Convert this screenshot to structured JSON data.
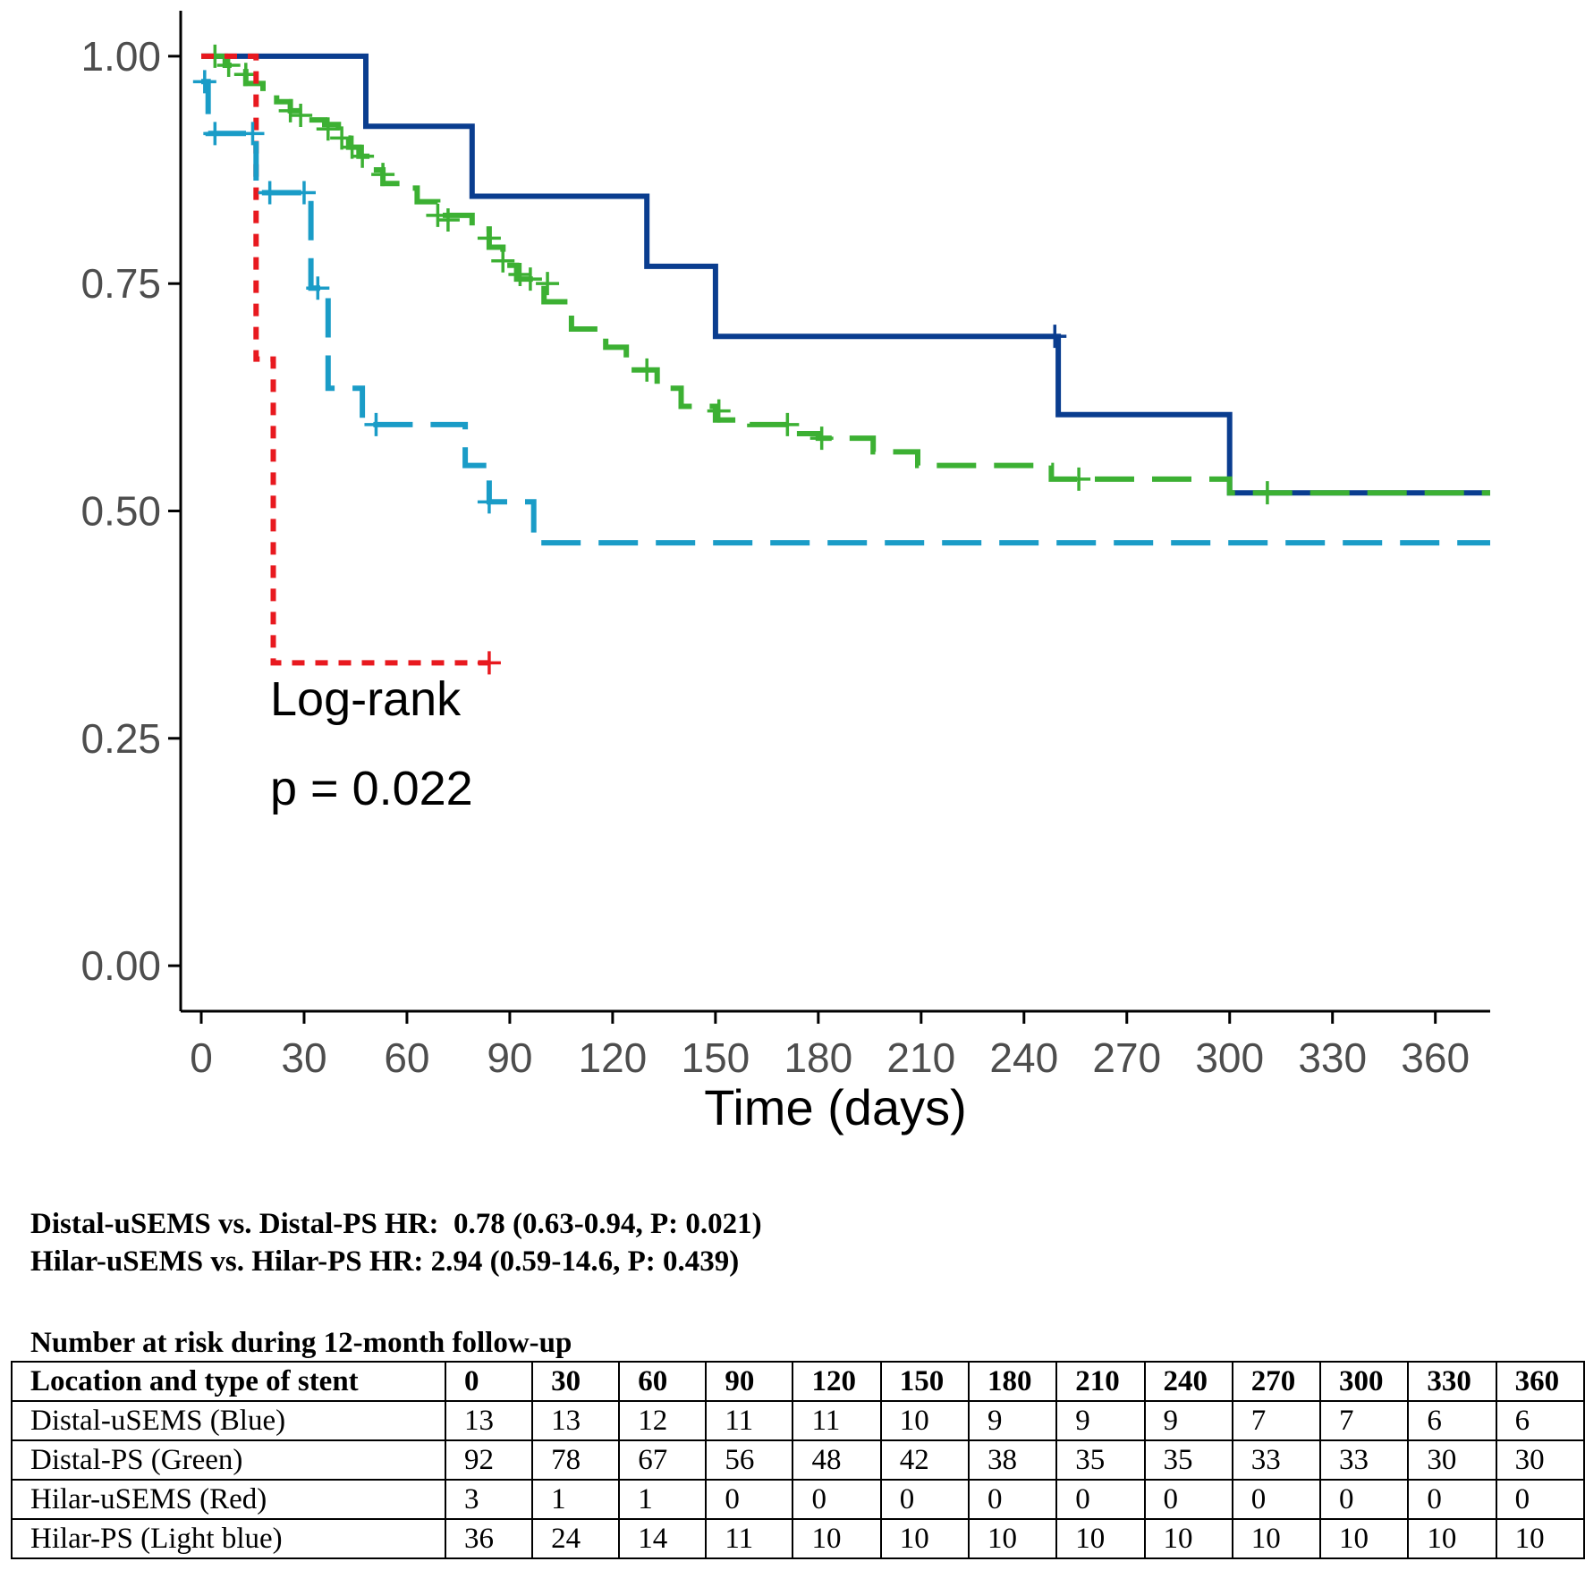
{
  "chart_data": {
    "type": "line",
    "subtype": "kaplan-meier-step",
    "xlabel": "Time (days)",
    "ylabel": "",
    "xlim": [
      -6,
      376
    ],
    "ylim": [
      -0.05,
      1.05
    ],
    "x_ticks": [
      0,
      30,
      60,
      90,
      120,
      150,
      180,
      210,
      240,
      270,
      300,
      330,
      360
    ],
    "y_ticks": [
      "0.00",
      "0.25",
      "0.50",
      "0.75",
      "1.00"
    ],
    "grid": false,
    "legend": "none",
    "annotations": [
      "Log-rank",
      "p = 0.022"
    ],
    "series": [
      {
        "key": "distal_usems",
        "color": "#0a3d8f",
        "dash": "solid",
        "steps": [
          [
            0,
            1.0
          ],
          [
            48,
            0.923
          ],
          [
            79,
            0.846
          ],
          [
            130,
            0.769
          ],
          [
            150,
            0.692
          ],
          [
            250,
            0.606
          ],
          [
            300,
            0.52
          ],
          [
            376,
            0.52
          ]
        ],
        "censors": [
          [
            249,
            0.692
          ]
        ]
      },
      {
        "key": "distal_ps",
        "color": "#3cb033",
        "dash": "dashed",
        "steps": [
          [
            0,
            1.0
          ],
          [
            7,
            0.99
          ],
          [
            13,
            0.97
          ],
          [
            18,
            0.96
          ],
          [
            22,
            0.95
          ],
          [
            26,
            0.94
          ],
          [
            30,
            0.93
          ],
          [
            36,
            0.925
          ],
          [
            40,
            0.91
          ],
          [
            43,
            0.9
          ],
          [
            46,
            0.89
          ],
          [
            50,
            0.875
          ],
          [
            53,
            0.86
          ],
          [
            60,
            0.855
          ],
          [
            63,
            0.84
          ],
          [
            69,
            0.825
          ],
          [
            79,
            0.81
          ],
          [
            84,
            0.79
          ],
          [
            88,
            0.77
          ],
          [
            92,
            0.755
          ],
          [
            100,
            0.73
          ],
          [
            108,
            0.7
          ],
          [
            118,
            0.68
          ],
          [
            124,
            0.655
          ],
          [
            133,
            0.635
          ],
          [
            140,
            0.615
          ],
          [
            150,
            0.6
          ],
          [
            160,
            0.595
          ],
          [
            172,
            0.585
          ],
          [
            180,
            0.58
          ],
          [
            196,
            0.565
          ],
          [
            209,
            0.55
          ],
          [
            248,
            0.535
          ],
          [
            300,
            0.52
          ],
          [
            376,
            0.52
          ]
        ],
        "censors": [
          [
            4,
            1.0
          ],
          [
            8,
            0.99
          ],
          [
            13,
            0.98
          ],
          [
            26,
            0.94
          ],
          [
            29,
            0.935
          ],
          [
            37,
            0.92
          ],
          [
            41,
            0.91
          ],
          [
            44,
            0.9
          ],
          [
            47,
            0.89
          ],
          [
            53,
            0.87
          ],
          [
            69,
            0.825
          ],
          [
            72,
            0.82
          ],
          [
            84,
            0.8
          ],
          [
            88,
            0.775
          ],
          [
            93,
            0.76
          ],
          [
            96,
            0.755
          ],
          [
            101,
            0.75
          ],
          [
            130,
            0.655
          ],
          [
            151,
            0.61
          ],
          [
            171,
            0.595
          ],
          [
            181,
            0.58
          ],
          [
            256,
            0.535
          ],
          [
            311,
            0.52
          ]
        ]
      },
      {
        "key": "hilar_usems",
        "color": "#e8191f",
        "dash": "dotted",
        "steps": [
          [
            0,
            1.0
          ],
          [
            16,
            0.667
          ],
          [
            21,
            0.333
          ],
          [
            84,
            0.333
          ]
        ],
        "censors": [
          [
            84,
            0.333
          ]
        ]
      },
      {
        "key": "hilar_ps",
        "color": "#1a9cc7",
        "dash": "dashed",
        "steps": [
          [
            0,
            0.972
          ],
          [
            2,
            0.915
          ],
          [
            16,
            0.85
          ],
          [
            32,
            0.745
          ],
          [
            37,
            0.635
          ],
          [
            47,
            0.595
          ],
          [
            77,
            0.55
          ],
          [
            84,
            0.51
          ],
          [
            97,
            0.465
          ],
          [
            376,
            0.465
          ]
        ],
        "censors": [
          [
            1,
            0.972
          ],
          [
            4,
            0.915
          ],
          [
            15,
            0.915
          ],
          [
            20,
            0.85
          ],
          [
            30,
            0.85
          ],
          [
            34,
            0.745
          ],
          [
            51,
            0.595
          ],
          [
            84,
            0.51
          ]
        ]
      }
    ]
  },
  "hr_lines": [
    "Distal-uSEMS vs. Distal-PS HR:  0.78 (0.63-0.94, P: 0.021)",
    "Hilar-uSEMS vs. Hilar-PS HR: 2.94 (0.59-14.6, P: 0.439)"
  ],
  "risk_table": {
    "title": "Number at risk during 12-month follow-up",
    "header": [
      "Location and type of stent",
      "0",
      "30",
      "60",
      "90",
      "120",
      "150",
      "180",
      "210",
      "240",
      "270",
      "300",
      "330",
      "360"
    ],
    "rows": [
      [
        "Distal-uSEMS (Blue)",
        "13",
        "13",
        "12",
        "11",
        "11",
        "10",
        "9",
        "9",
        "9",
        "7",
        "7",
        "6",
        "6"
      ],
      [
        "Distal-PS (Green)",
        "92",
        "78",
        "67",
        "56",
        "48",
        "42",
        "38",
        "35",
        "35",
        "33",
        "33",
        "30",
        "30"
      ],
      [
        "Hilar-uSEMS (Red)",
        "3",
        "1",
        "1",
        "0",
        "0",
        "0",
        "0",
        "0",
        "0",
        "0",
        "0",
        "0",
        "0"
      ],
      [
        "Hilar-PS (Light blue)",
        "36",
        "24",
        "14",
        "11",
        "10",
        "10",
        "10",
        "10",
        "10",
        "10",
        "10",
        "10",
        "10"
      ]
    ]
  }
}
